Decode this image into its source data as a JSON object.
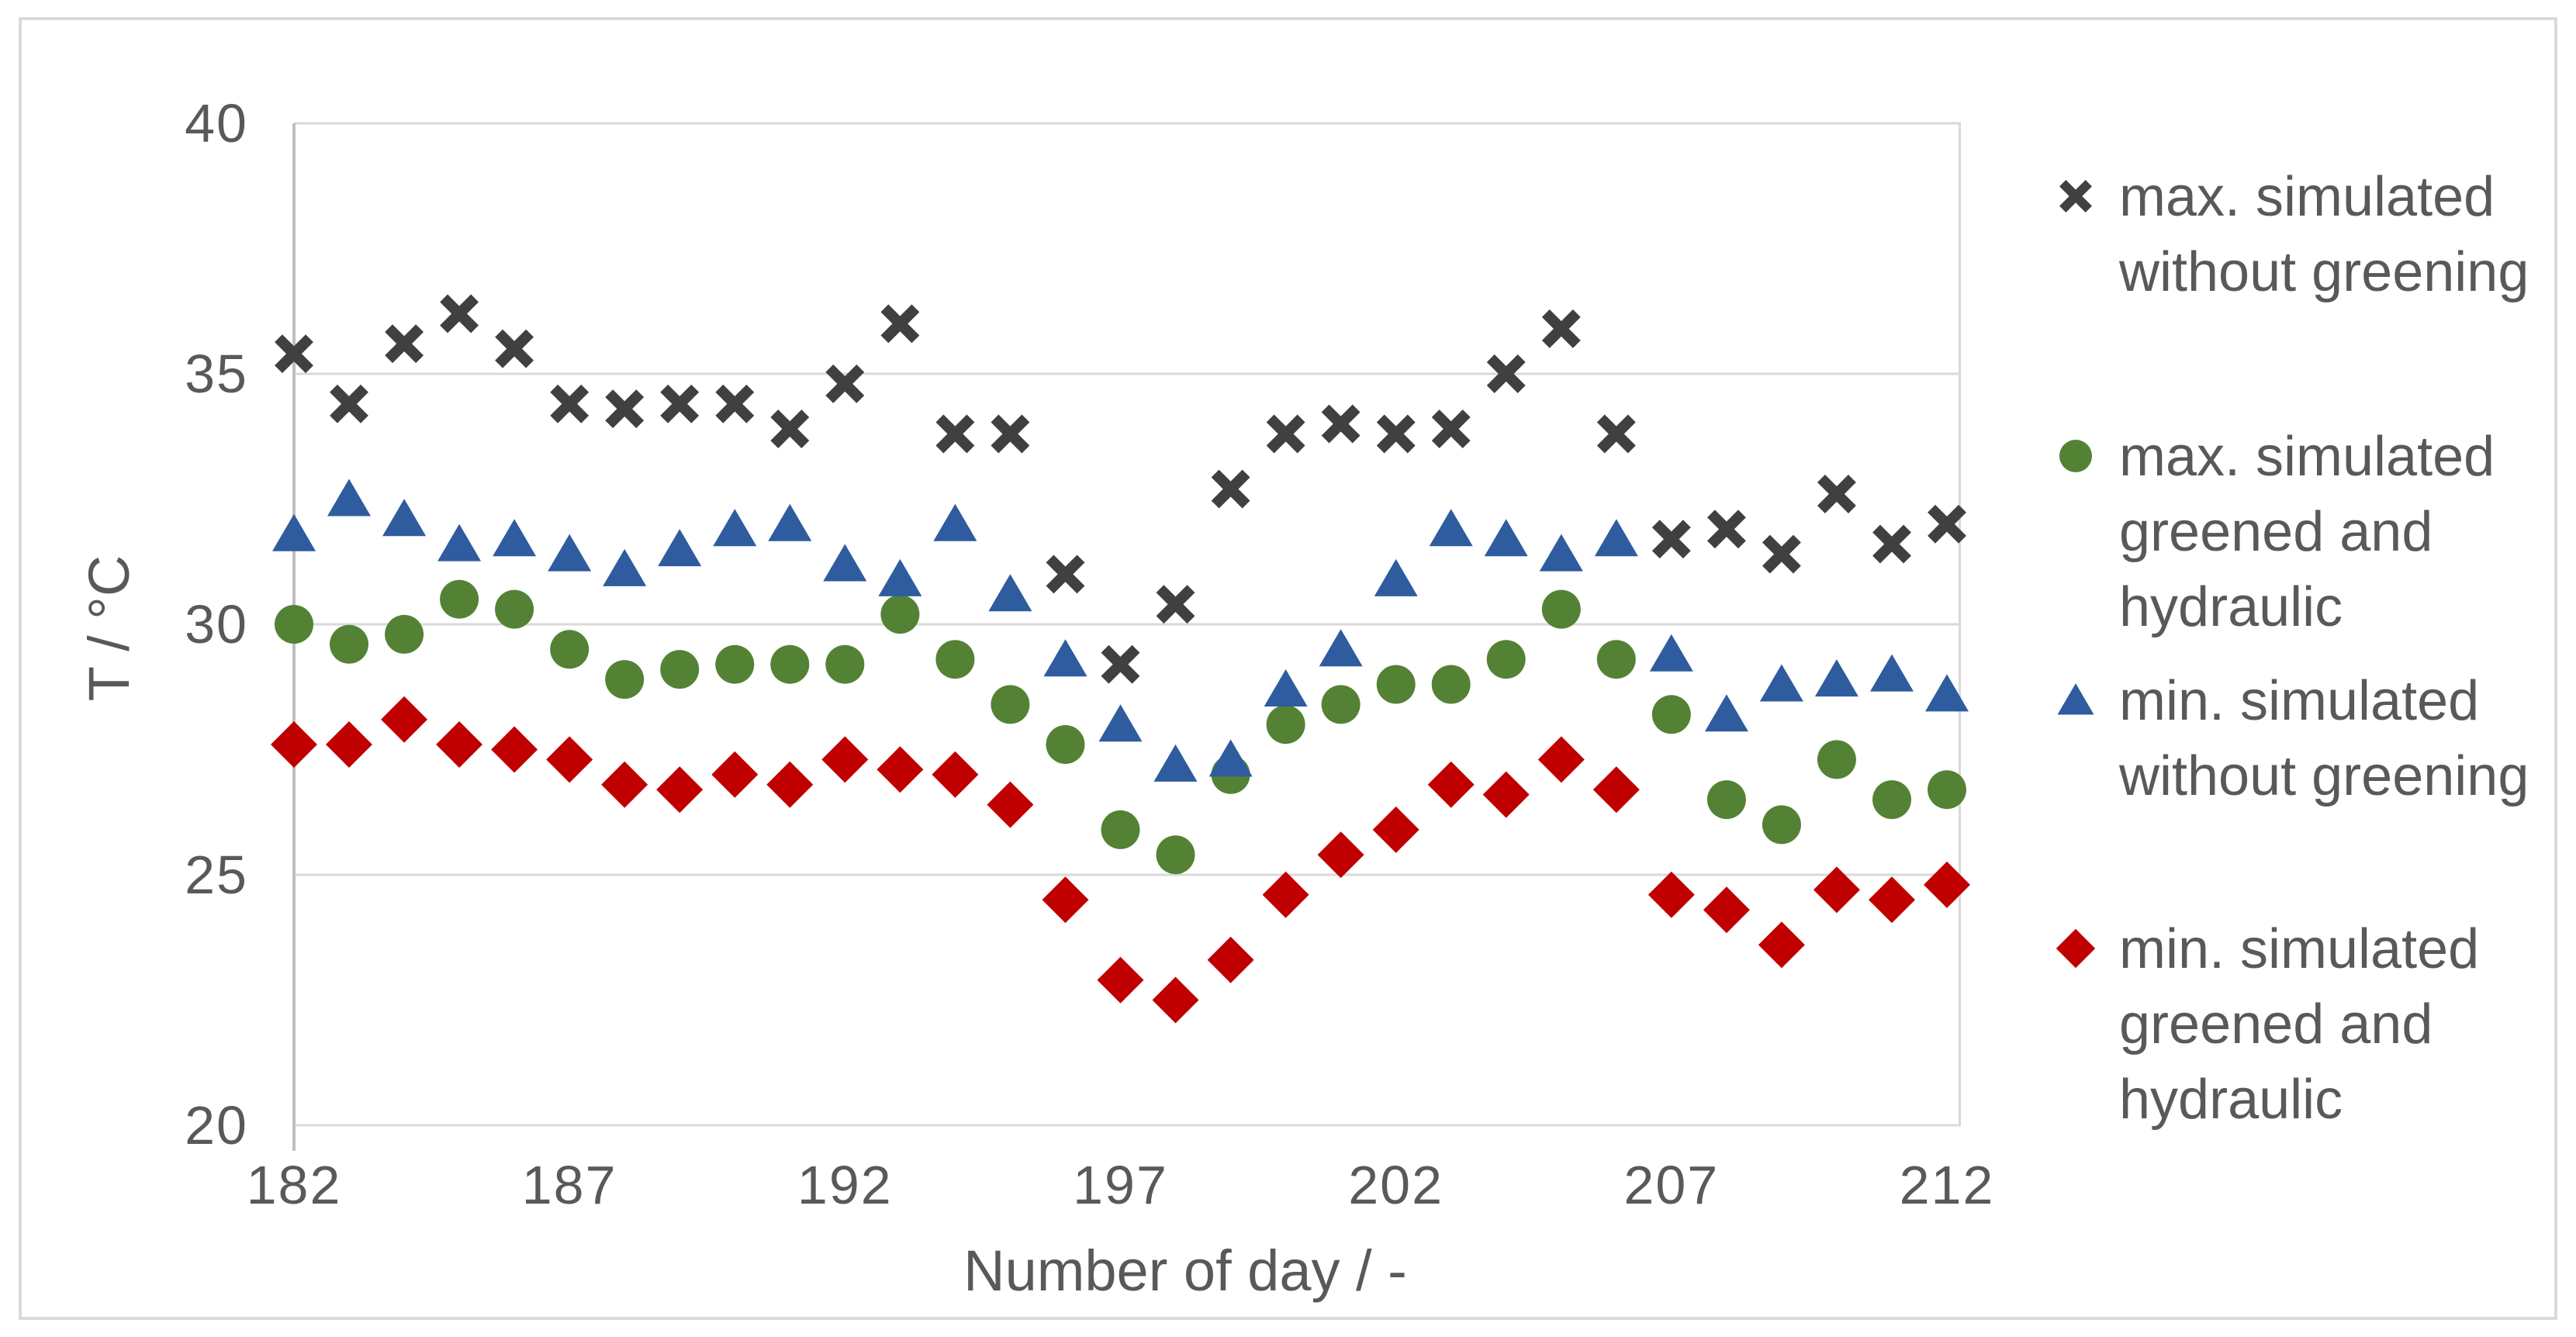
{
  "chart_data": {
    "type": "scatter",
    "title": "",
    "xlabel": "Number of day / -",
    "ylabel": "T / °C",
    "xlim": [
      182,
      212
    ],
    "ylim": [
      20,
      40
    ],
    "xticks": [
      182,
      187,
      192,
      197,
      202,
      207,
      212
    ],
    "yticks": [
      20,
      25,
      30,
      35,
      40
    ],
    "grid": "horizontal",
    "legend_position": "right",
    "x": [
      182,
      183,
      184,
      185,
      186,
      187,
      188,
      189,
      190,
      191,
      192,
      193,
      194,
      195,
      196,
      197,
      198,
      199,
      200,
      201,
      202,
      203,
      204,
      205,
      206,
      207,
      208,
      209,
      210,
      211,
      212
    ],
    "series": [
      {
        "name": "max. simulated without greening",
        "marker": "x",
        "color": "#404040",
        "values": [
          35.4,
          34.4,
          35.6,
          36.2,
          35.5,
          34.4,
          34.3,
          34.4,
          34.4,
          33.9,
          34.8,
          36.0,
          33.8,
          33.8,
          31.0,
          29.2,
          30.4,
          32.7,
          33.8,
          34.0,
          33.8,
          33.9,
          35.0,
          35.9,
          33.8,
          31.7,
          31.9,
          31.4,
          32.6,
          31.6,
          32.0
        ]
      },
      {
        "name": "max. simulated greened and hydraulic",
        "marker": "circle",
        "color": "#548235",
        "values": [
          30.0,
          29.6,
          29.8,
          30.5,
          30.3,
          29.5,
          28.9,
          29.1,
          29.2,
          29.2,
          29.2,
          30.2,
          29.3,
          28.4,
          27.6,
          25.9,
          25.4,
          27.0,
          28.0,
          28.4,
          28.8,
          28.8,
          29.3,
          30.3,
          29.3,
          28.2,
          26.5,
          26.0,
          27.3,
          26.5,
          26.7
        ]
      },
      {
        "name": "min. simulated without greening",
        "marker": "triangle",
        "color": "#2E5C9E",
        "values": [
          31.8,
          32.5,
          32.1,
          31.6,
          31.7,
          31.4,
          31.1,
          31.5,
          31.9,
          32.0,
          31.2,
          30.9,
          32.0,
          30.6,
          29.3,
          28.0,
          27.2,
          27.3,
          28.7,
          29.5,
          30.9,
          31.9,
          31.7,
          31.4,
          31.7,
          29.4,
          28.2,
          28.8,
          28.9,
          29.0,
          28.6
        ]
      },
      {
        "name": "min. simulated greened and hydraulic",
        "marker": "diamond",
        "color": "#C00000",
        "values": [
          27.6,
          27.6,
          28.1,
          27.6,
          27.5,
          27.3,
          26.8,
          26.7,
          27.0,
          26.8,
          27.3,
          27.1,
          27.0,
          26.4,
          24.5,
          22.9,
          22.5,
          23.3,
          24.6,
          25.4,
          25.9,
          26.8,
          26.6,
          27.3,
          26.7,
          24.6,
          24.3,
          23.6,
          24.7,
          24.5,
          24.8
        ]
      }
    ]
  },
  "axes": {
    "x_title": "Number of day / -",
    "y_title": "T / °C"
  },
  "legend": {
    "entries": [
      {
        "marker": "x",
        "color": "#404040",
        "label": "max. simulated without greening",
        "label_lines": [
          "max. simulated",
          "without greening"
        ]
      },
      {
        "marker": "circle",
        "color": "#548235",
        "label": "max. simulated greened and hydraulic",
        "label_lines": [
          "max. simulated",
          "greened and",
          "hydraulic"
        ]
      },
      {
        "marker": "triangle",
        "color": "#2E5C9E",
        "label": "min. simulated without greening",
        "label_lines": [
          "min. simulated",
          "without greening"
        ]
      },
      {
        "marker": "diamond",
        "color": "#C00000",
        "label": "min. simulated greened and hydraulic",
        "label_lines": [
          "min. simulated",
          "greened and",
          "hydraulic"
        ]
      }
    ]
  },
  "style": {
    "gridline_color": "#d9d9d9",
    "axis_line_color": "#bfbfbf",
    "text_color": "#595959",
    "background": "#ffffff"
  }
}
